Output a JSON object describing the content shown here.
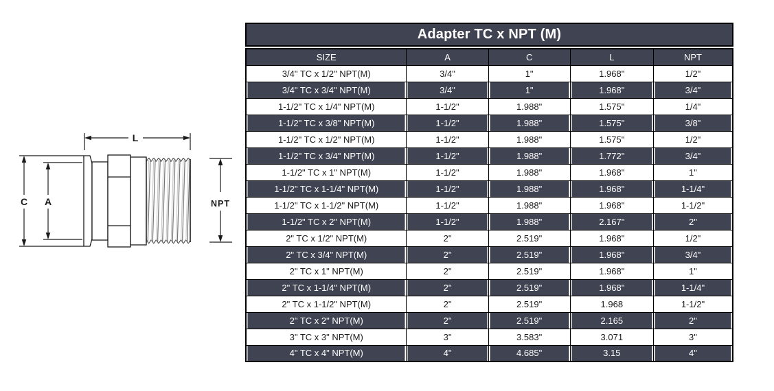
{
  "colors": {
    "table_dark_bg": "#404452",
    "table_light_bg": "#ffffff",
    "border": "#000000",
    "text_light": "#ffffff",
    "text_dark": "#1a1a1a"
  },
  "table": {
    "title": "Adapter TC x NPT (M)",
    "columns": [
      "SIZE",
      "A",
      "C",
      "L",
      "NPT"
    ],
    "rows": [
      [
        "3/4\" TC x 1/2\" NPT(M)",
        "3/4\"",
        "1\"",
        "1.968\"",
        "1/2\""
      ],
      [
        "3/4\" TC x 3/4\" NPT(M)",
        "3/4\"",
        "1\"",
        "1.968\"",
        "3/4\""
      ],
      [
        "1-1/2\" TC x 1/4\" NPT(M)",
        "1-1/2\"",
        "1.988\"",
        "1.575\"",
        "1/4\""
      ],
      [
        "1-1/2\" TC x 3/8\" NPT(M)",
        "1-1/2\"",
        "1.988\"",
        "1.575\"",
        "3/8\""
      ],
      [
        "1-1/2\" TC x 1/2\" NPT(M)",
        "1-1/2\"",
        "1.988\"",
        "1.575\"",
        "1/2\""
      ],
      [
        "1-1/2\" TC x 3/4\" NPT(M)",
        "1-1/2\"",
        "1.988\"",
        "1.772\"",
        "3/4\""
      ],
      [
        "1-1/2\" TC x 1\" NPT(M)",
        "1-1/2\"",
        "1.988\"",
        "1.968\"",
        "1\""
      ],
      [
        "1-1/2\" TC x 1-1/4\" NPT(M)",
        "1-1/2\"",
        "1.988\"",
        "1.968\"",
        "1-1/4\""
      ],
      [
        "1-1/2\" TC x 1-1/2\" NPT(M)",
        "1-1/2\"",
        "1.988\"",
        "1.968\"",
        "1-1/2\""
      ],
      [
        "1-1/2\" TC x 2\" NPT(M)",
        "1-1/2\"",
        "1.988\"",
        "2.167\"",
        "2\""
      ],
      [
        "2\" TC x 1/2\" NPT(M)",
        "2\"",
        "2.519\"",
        "1.968\"",
        "1/2\""
      ],
      [
        "2\" TC x 3/4\" NPT(M)",
        "2\"",
        "2.519\"",
        "1.968\"",
        "3/4\""
      ],
      [
        "2\" TC x 1\" NPT(M)",
        "2\"",
        "2.519\"",
        "1.968\"",
        "1\""
      ],
      [
        "2\" TC x 1-1/4\" NPT(M)",
        "2\"",
        "2.519\"",
        "1.968\"",
        "1-1/4\""
      ],
      [
        "2\" TC x 1-1/2\" NPT(M)",
        "2\"",
        "2.519\"",
        "1.968",
        "1-1/2\""
      ],
      [
        "2\" TC x 2\" NPT(M)",
        "2\"",
        "2.519\"",
        "2.165",
        "2\""
      ],
      [
        "3\" TC x 3\" NPT(M)",
        "3\"",
        "3.583\"",
        "3.071",
        "3\""
      ],
      [
        "4\" TC x 4\" NPT(M)",
        "4\"",
        "4.685\"",
        "3.15",
        "4\""
      ]
    ]
  },
  "diagram": {
    "labels": {
      "length": "L",
      "clamp_od": "C",
      "tube_id": "A",
      "thread": "NPT"
    }
  }
}
